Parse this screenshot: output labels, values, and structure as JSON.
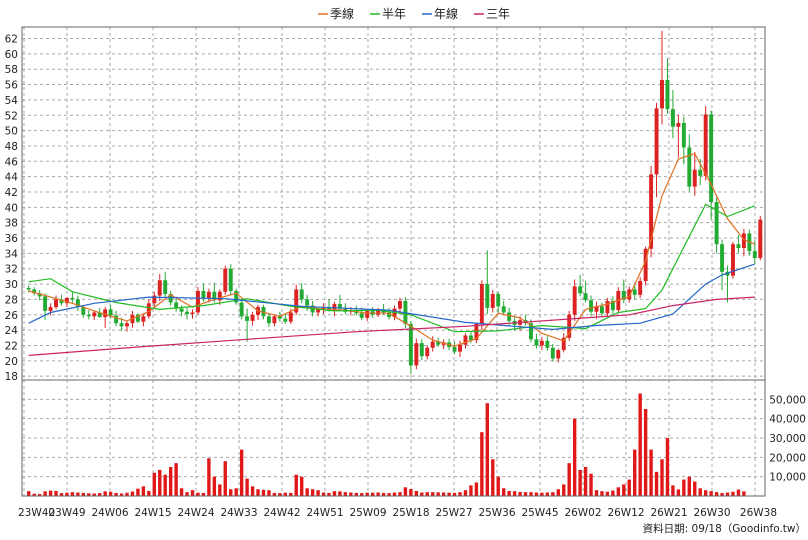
{
  "legend": [
    {
      "name": "季線",
      "color": "#e07020"
    },
    {
      "name": "半年",
      "color": "#22bb22"
    },
    {
      "name": "年線",
      "color": "#2266cc"
    },
    {
      "name": "三年",
      "color": "#cc2266"
    }
  ],
  "footer": {
    "source": "資料日期: 09/18（Goodinfo.tw）"
  },
  "chart_data": {
    "type": "candlestick",
    "x_tick_labels": [
      "23W40",
      "23W49",
      "24W06",
      "24W15",
      "24W24",
      "24W33",
      "24W42",
      "24W51",
      "25W09",
      "25W18",
      "25W27",
      "25W36",
      "25W45",
      "26W02",
      "26W12",
      "26W21",
      "26W30",
      "26W38"
    ],
    "price_ticks": [
      18,
      20,
      22,
      24,
      26,
      28,
      30,
      32,
      34,
      36,
      38,
      40,
      42,
      44,
      46,
      48,
      50,
      52,
      54,
      56,
      58,
      60,
      62
    ],
    "price_range": [
      17.5,
      63.5
    ],
    "volume_ticks": [
      10000,
      20000,
      30000,
      40000,
      50000
    ],
    "volume_tick_labels": [
      "10,000",
      "20,000",
      "30,000",
      "40,000",
      "50,000"
    ],
    "volume_range": [
      0,
      60000
    ],
    "up_color": "#dd2222",
    "down_color": "#22aa33",
    "candles": [
      [
        29.5,
        29.8,
        28.9,
        29.3
      ],
      [
        29.3,
        29.6,
        28.5,
        28.8
      ],
      [
        28.8,
        29.2,
        27.9,
        28.4
      ],
      [
        28.4,
        28.8,
        25.3,
        26.5
      ],
      [
        26.5,
        27.5,
        25.9,
        27.0
      ],
      [
        27.0,
        28.5,
        26.7,
        28.0
      ],
      [
        28.0,
        28.6,
        27.2,
        27.5
      ],
      [
        27.5,
        28.3,
        27.0,
        28.2
      ],
      [
        28.2,
        28.9,
        27.6,
        28.0
      ],
      [
        28.0,
        28.5,
        26.5,
        27.0
      ],
      [
        27.0,
        27.2,
        25.6,
        26.0
      ],
      [
        26.0,
        26.6,
        25.4,
        25.8
      ],
      [
        25.8,
        26.6,
        25.3,
        26.3
      ],
      [
        26.3,
        26.9,
        25.6,
        25.7
      ],
      [
        25.7,
        27.0,
        24.3,
        26.7
      ],
      [
        26.7,
        27.3,
        25.5,
        25.9
      ],
      [
        25.9,
        26.5,
        24.5,
        24.9
      ],
      [
        24.9,
        25.6,
        23.9,
        24.5
      ],
      [
        24.5,
        25.2,
        23.8,
        24.9
      ],
      [
        24.9,
        26.5,
        24.3,
        26.0
      ],
      [
        26.0,
        26.2,
        24.9,
        25.1
      ],
      [
        25.1,
        26.1,
        24.5,
        25.8
      ],
      [
        25.8,
        28.0,
        25.5,
        27.5
      ],
      [
        27.5,
        29.0,
        26.8,
        28.5
      ],
      [
        28.5,
        31.3,
        27.8,
        30.5
      ],
      [
        30.5,
        31.6,
        28.2,
        28.7
      ],
      [
        28.7,
        29.1,
        27.2,
        27.6
      ],
      [
        27.6,
        28.2,
        26.4,
        26.8
      ],
      [
        26.8,
        27.2,
        25.8,
        26.4
      ],
      [
        26.4,
        26.9,
        25.4,
        26.1
      ],
      [
        26.1,
        26.7,
        25.5,
        26.3
      ],
      [
        26.3,
        29.6,
        26.0,
        29.1
      ],
      [
        29.1,
        30.1,
        27.7,
        28.2
      ],
      [
        28.2,
        29.4,
        27.6,
        29.0
      ],
      [
        29.0,
        30.2,
        27.6,
        27.9
      ],
      [
        27.9,
        29.3,
        27.3,
        29.0
      ],
      [
        29.0,
        32.4,
        28.6,
        32.0
      ],
      [
        32.0,
        32.6,
        28.6,
        29.1
      ],
      [
        29.1,
        29.4,
        27.3,
        27.6
      ],
      [
        27.6,
        28.1,
        25.4,
        25.8
      ],
      [
        25.8,
        26.8,
        22.5,
        25.2
      ],
      [
        25.2,
        26.4,
        24.6,
        26.0
      ],
      [
        26.0,
        27.3,
        25.3,
        27.0
      ],
      [
        27.0,
        27.3,
        25.4,
        25.8
      ],
      [
        25.8,
        26.2,
        24.4,
        24.9
      ],
      [
        24.9,
        26.0,
        24.5,
        25.8
      ],
      [
        25.8,
        26.4,
        25.1,
        25.5
      ],
      [
        25.5,
        26.1,
        24.8,
        25.1
      ],
      [
        25.1,
        26.8,
        24.8,
        26.3
      ],
      [
        26.3,
        29.9,
        26.0,
        29.3
      ],
      [
        29.3,
        30.1,
        27.5,
        28.0
      ],
      [
        28.0,
        28.6,
        26.5,
        27.2
      ],
      [
        27.2,
        27.8,
        25.8,
        26.3
      ],
      [
        26.3,
        26.9,
        25.8,
        26.7
      ],
      [
        26.7,
        27.5,
        26.1,
        26.9
      ],
      [
        26.9,
        28.0,
        26.4,
        26.6
      ],
      [
        26.6,
        27.7,
        25.8,
        27.4
      ],
      [
        27.4,
        28.6,
        26.5,
        26.8
      ],
      [
        26.8,
        27.5,
        26.1,
        26.4
      ],
      [
        26.4,
        27.0,
        25.9,
        26.6
      ],
      [
        26.6,
        27.2,
        25.9,
        26.2
      ],
      [
        26.2,
        26.9,
        25.3,
        25.6
      ],
      [
        25.6,
        26.7,
        25.2,
        26.5
      ],
      [
        26.5,
        27.0,
        25.6,
        26.0
      ],
      [
        26.0,
        26.9,
        25.7,
        26.7
      ],
      [
        26.7,
        27.4,
        26.0,
        26.3
      ],
      [
        26.3,
        26.9,
        25.4,
        25.7
      ],
      [
        25.7,
        27.2,
        25.3,
        26.8
      ],
      [
        26.8,
        28.2,
        26.1,
        27.8
      ],
      [
        27.8,
        28.3,
        24.3,
        24.8
      ],
      [
        24.8,
        25.2,
        18.3,
        19.4
      ],
      [
        19.4,
        22.9,
        18.9,
        22.3
      ],
      [
        22.3,
        22.8,
        20.1,
        20.6
      ],
      [
        20.6,
        22.0,
        20.2,
        21.7
      ],
      [
        21.7,
        23.2,
        21.2,
        22.5
      ],
      [
        22.5,
        23.0,
        21.8,
        22.1
      ],
      [
        22.1,
        22.8,
        21.5,
        22.4
      ],
      [
        22.4,
        22.9,
        21.4,
        21.8
      ],
      [
        21.8,
        22.5,
        20.9,
        21.2
      ],
      [
        21.2,
        22.6,
        20.5,
        22.1
      ],
      [
        22.1,
        23.6,
        21.6,
        23.3
      ],
      [
        23.3,
        23.9,
        22.3,
        22.7
      ],
      [
        22.7,
        25.0,
        22.3,
        24.8
      ],
      [
        24.8,
        30.5,
        24.0,
        30.0
      ],
      [
        30.0,
        34.4,
        26.1,
        26.9
      ],
      [
        26.9,
        29.2,
        26.3,
        28.7
      ],
      [
        28.7,
        29.0,
        26.3,
        27.1
      ],
      [
        27.1,
        27.8,
        25.9,
        26.3
      ],
      [
        26.3,
        26.9,
        24.5,
        25.2
      ],
      [
        25.2,
        25.9,
        23.9,
        24.7
      ],
      [
        24.7,
        25.8,
        23.9,
        25.3
      ],
      [
        25.3,
        26.0,
        24.6,
        24.9
      ],
      [
        24.9,
        25.4,
        22.4,
        22.8
      ],
      [
        22.8,
        23.5,
        21.6,
        22.0
      ],
      [
        22.0,
        23.1,
        21.4,
        22.6
      ],
      [
        22.6,
        23.2,
        21.3,
        21.7
      ],
      [
        21.7,
        22.2,
        19.9,
        20.3
      ],
      [
        20.3,
        21.6,
        19.8,
        21.4
      ],
      [
        21.4,
        23.6,
        21.1,
        23.0
      ],
      [
        23.0,
        26.5,
        22.6,
        26.0
      ],
      [
        26.0,
        30.6,
        25.2,
        29.7
      ],
      [
        29.7,
        31.2,
        28.4,
        28.8
      ],
      [
        28.8,
        30.4,
        27.6,
        27.9
      ],
      [
        27.9,
        28.5,
        25.8,
        26.4
      ],
      [
        26.4,
        27.7,
        25.5,
        27.1
      ],
      [
        27.1,
        27.6,
        25.8,
        26.2
      ],
      [
        26.2,
        28.2,
        25.7,
        27.8
      ],
      [
        27.8,
        28.4,
        26.1,
        26.6
      ],
      [
        26.6,
        29.6,
        26.2,
        29.1
      ],
      [
        29.1,
        30.6,
        27.5,
        28.0
      ],
      [
        28.0,
        29.7,
        27.6,
        29.3
      ],
      [
        29.3,
        30.2,
        28.0,
        28.6
      ],
      [
        28.6,
        30.9,
        28.2,
        30.4
      ],
      [
        30.4,
        34.9,
        29.8,
        34.6
      ],
      [
        34.6,
        45.4,
        33.5,
        44.3
      ],
      [
        44.3,
        53.6,
        41.3,
        52.9
      ],
      [
        52.9,
        63.0,
        50.8,
        56.6
      ],
      [
        56.6,
        59.4,
        52.2,
        52.8
      ],
      [
        52.8,
        55.3,
        49.0,
        50.5
      ],
      [
        50.5,
        52.1,
        46.5,
        51.0
      ],
      [
        51.0,
        51.8,
        45.6,
        47.8
      ],
      [
        47.8,
        49.5,
        42.1,
        42.7
      ],
      [
        42.7,
        47.2,
        41.5,
        44.9
      ],
      [
        44.9,
        46.3,
        42.9,
        44.1
      ],
      [
        44.1,
        53.2,
        43.5,
        52.1
      ],
      [
        52.1,
        52.6,
        38.4,
        40.7
      ],
      [
        40.7,
        41.3,
        34.0,
        35.2
      ],
      [
        35.2,
        35.8,
        29.2,
        31.6
      ],
      [
        31.6,
        32.4,
        27.6,
        31.1
      ],
      [
        31.1,
        35.5,
        30.7,
        35.2
      ],
      [
        35.2,
        36.4,
        34.1,
        34.7
      ],
      [
        34.7,
        37.2,
        33.6,
        36.6
      ],
      [
        36.6,
        37.1,
        33.7,
        34.3
      ],
      [
        34.3,
        35.7,
        32.7,
        33.4
      ],
      [
        33.4,
        38.9,
        33.1,
        38.4
      ]
    ],
    "volumes": [
      2500,
      1200,
      1000,
      2400,
      2800,
      2600,
      1500,
      1700,
      2000,
      1800,
      1600,
      1400,
      1300,
      1500,
      2400,
      2200,
      1600,
      1300,
      1700,
      2300,
      3800,
      5000,
      2600,
      12000,
      13500,
      11000,
      15000,
      17000,
      4000,
      2000,
      3000,
      1700,
      1600,
      19500,
      10000,
      6000,
      18000,
      3500,
      4000,
      24000,
      9000,
      5000,
      3500,
      3200,
      3000,
      1600,
      1500,
      1700,
      1600,
      11000,
      10000,
      4000,
      3500,
      3000,
      1800,
      1600,
      2500,
      2400,
      2000,
      1800,
      1600,
      1500,
      1700,
      1700,
      1800,
      1600,
      1500,
      1800,
      2000,
      4500,
      3600,
      2600,
      1800,
      2000,
      2000,
      1900,
      1800,
      1700,
      1600,
      2000,
      3000,
      5500,
      7000,
      33000,
      48000,
      19000,
      10000,
      4000,
      2600,
      2500,
      2100,
      2000,
      2000,
      1800,
      1700,
      1800,
      2000,
      3500,
      6000,
      17000,
      40000,
      13500,
      15000,
      11500,
      3000,
      2500,
      2200,
      2800,
      4500,
      6000,
      8500,
      24000,
      53000,
      45000,
      24000,
      12500,
      19000,
      30000,
      5500,
      3400,
      8500,
      10000,
      7500,
      4000,
      3000,
      2500,
      2000,
      1500,
      1800,
      2200,
      3300,
      2400
    ],
    "ma_quarter": [
      [
        0,
        29.1
      ],
      [
        4,
        28.3
      ],
      [
        8,
        27.5
      ],
      [
        12,
        26.5
      ],
      [
        16,
        25.6
      ],
      [
        18,
        25.2
      ],
      [
        22,
        26.4
      ],
      [
        26,
        28.6
      ],
      [
        30,
        27.0
      ],
      [
        34,
        28.0
      ],
      [
        38,
        28.8
      ],
      [
        42,
        26.5
      ],
      [
        46,
        25.8
      ],
      [
        50,
        27.1
      ],
      [
        54,
        26.7
      ],
      [
        58,
        26.6
      ],
      [
        62,
        26.2
      ],
      [
        66,
        26.2
      ],
      [
        70,
        24.5
      ],
      [
        74,
        22.7
      ],
      [
        78,
        21.9
      ],
      [
        82,
        22.9
      ],
      [
        86,
        26.2
      ],
      [
        90,
        25.6
      ],
      [
        94,
        23.6
      ],
      [
        98,
        22.6
      ],
      [
        102,
        26.7
      ],
      [
        106,
        27.4
      ],
      [
        110,
        28.4
      ],
      [
        113,
        33.0
      ],
      [
        116,
        41.5
      ],
      [
        119,
        46.3
      ],
      [
        122,
        47.0
      ],
      [
        125,
        43.0
      ],
      [
        128,
        38.5
      ],
      [
        131,
        35.8
      ],
      [
        133,
        35.2
      ]
    ],
    "ma_half": [
      [
        0,
        30.3
      ],
      [
        4,
        30.7
      ],
      [
        8,
        29.0
      ],
      [
        16,
        27.6
      ],
      [
        24,
        26.7
      ],
      [
        32,
        27.2
      ],
      [
        40,
        28.1
      ],
      [
        48,
        27.1
      ],
      [
        56,
        26.5
      ],
      [
        64,
        26.6
      ],
      [
        70,
        26.0
      ],
      [
        78,
        23.8
      ],
      [
        86,
        23.9
      ],
      [
        94,
        24.6
      ],
      [
        102,
        24.2
      ],
      [
        108,
        26.3
      ],
      [
        113,
        26.8
      ],
      [
        116,
        29.2
      ],
      [
        120,
        34.8
      ],
      [
        124,
        40.4
      ],
      [
        128,
        38.8
      ],
      [
        133,
        40.2
      ]
    ],
    "ma_year": [
      [
        0,
        24.9
      ],
      [
        4,
        26.3
      ],
      [
        12,
        27.5
      ],
      [
        22,
        28.3
      ],
      [
        36,
        28.1
      ],
      [
        50,
        27.1
      ],
      [
        66,
        26.6
      ],
      [
        80,
        25.0
      ],
      [
        96,
        24.1
      ],
      [
        104,
        24.6
      ],
      [
        112,
        24.9
      ],
      [
        118,
        26.1
      ],
      [
        124,
        30.0
      ],
      [
        127,
        31.2
      ],
      [
        133,
        32.6
      ]
    ],
    "ma_3yr": [
      [
        0,
        20.7
      ],
      [
        20,
        21.8
      ],
      [
        40,
        22.8
      ],
      [
        60,
        23.8
      ],
      [
        80,
        24.5
      ],
      [
        100,
        25.5
      ],
      [
        110,
        26.0
      ],
      [
        118,
        27.2
      ],
      [
        126,
        28.0
      ],
      [
        133,
        28.3
      ]
    ]
  }
}
